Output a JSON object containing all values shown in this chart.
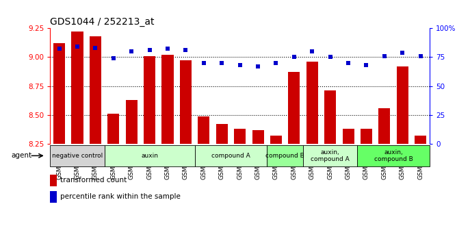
{
  "title": "GDS1044 / 252213_at",
  "samples": [
    "GSM25858",
    "GSM25859",
    "GSM25860",
    "GSM25861",
    "GSM25862",
    "GSM25863",
    "GSM25864",
    "GSM25865",
    "GSM25866",
    "GSM25867",
    "GSM25868",
    "GSM25869",
    "GSM25870",
    "GSM25871",
    "GSM25872",
    "GSM25873",
    "GSM25874",
    "GSM25875",
    "GSM25876",
    "GSM25877",
    "GSM25878"
  ],
  "bar_values": [
    9.12,
    9.22,
    9.18,
    8.51,
    8.63,
    9.01,
    9.02,
    8.97,
    8.49,
    8.42,
    8.38,
    8.37,
    8.32,
    8.87,
    8.96,
    8.71,
    8.38,
    8.38,
    8.56,
    8.92,
    8.32
  ],
  "dot_values": [
    82,
    84,
    83,
    74,
    80,
    81,
    82,
    81,
    70,
    70,
    68,
    67,
    70,
    75,
    80,
    75,
    70,
    68,
    76,
    79,
    76
  ],
  "ylim": [
    8.25,
    9.25
  ],
  "y2lim": [
    0,
    100
  ],
  "yticks": [
    8.25,
    8.5,
    8.75,
    9.0,
    9.25
  ],
  "y2ticks": [
    0,
    25,
    50,
    75,
    100
  ],
  "bar_color": "#cc0000",
  "dot_color": "#0000cc",
  "groups": [
    {
      "label": "negative control",
      "start": 0,
      "end": 3,
      "color": "#d3d3d3"
    },
    {
      "label": "auxin",
      "start": 3,
      "end": 8,
      "color": "#ccffcc"
    },
    {
      "label": "compound A",
      "start": 8,
      "end": 12,
      "color": "#ccffcc"
    },
    {
      "label": "compound B",
      "start": 12,
      "end": 14,
      "color": "#99ff99"
    },
    {
      "label": "auxin,\ncompound A",
      "start": 14,
      "end": 17,
      "color": "#ccffcc"
    },
    {
      "label": "auxin,\ncompound B",
      "start": 17,
      "end": 21,
      "color": "#66ff66"
    }
  ],
  "legend_bar_label": "transformed count",
  "legend_dot_label": "percentile rank within the sample",
  "agent_label": "agent"
}
